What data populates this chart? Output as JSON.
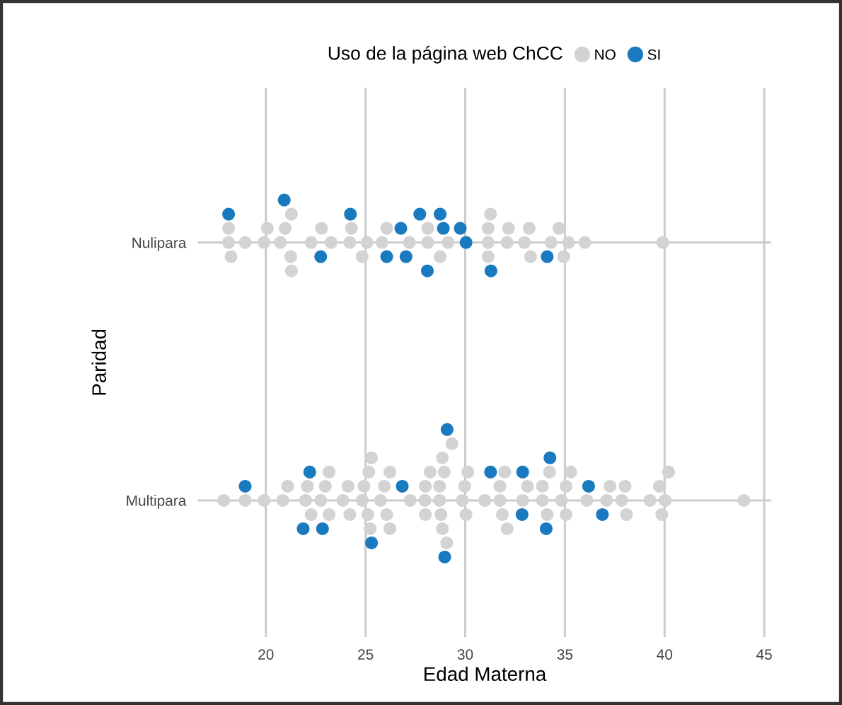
{
  "chart_data": {
    "type": "scatter",
    "orientation": "horizontal",
    "xlabel": "Edad Materna",
    "ylabel": "Paridad",
    "legend_title": "Uso de la página web ChCC",
    "legend": "top",
    "grid": true,
    "marker": "circle",
    "categories": [
      "Nulipara",
      "Multipara"
    ],
    "xlim": [
      16.6,
      45.35
    ],
    "xticks": [
      20,
      25,
      30,
      35,
      40,
      45
    ],
    "series": [
      {
        "name": "NO",
        "color": "#d3d3d3",
        "x": [
          "Nulipara",
          "Nulipara",
          "Nulipara",
          "Nulipara",
          "Nulipara",
          "Nulipara",
          "Nulipara",
          "Nulipara",
          "Nulipara",
          "Nulipara",
          "Nulipara",
          "Nulipara",
          "Nulipara",
          "Nulipara",
          "Nulipara",
          "Nulipara",
          "Nulipara",
          "Nulipara",
          "Nulipara",
          "Nulipara",
          "Nulipara",
          "Nulipara",
          "Nulipara",
          "Nulipara",
          "Nulipara",
          "Nulipara",
          "Nulipara",
          "Nulipara",
          "Nulipara",
          "Nulipara",
          "Nulipara",
          "Nulipara",
          "Nulipara",
          "Nulipara",
          "Nulipara",
          "Nulipara",
          "Nulipara",
          "Nulipara",
          "Nulipara",
          "Nulipara",
          "Multipara",
          "Multipara",
          "Multipara",
          "Multipara",
          "Multipara",
          "Multipara",
          "Multipara",
          "Multipara",
          "Multipara",
          "Multipara",
          "Multipara",
          "Multipara",
          "Multipara",
          "Multipara",
          "Multipara",
          "Multipara",
          "Multipara",
          "Multipara",
          "Multipara",
          "Multipara",
          "Multipara",
          "Multipara",
          "Multipara",
          "Multipara",
          "Multipara",
          "Multipara",
          "Multipara",
          "Multipara",
          "Multipara",
          "Multipara",
          "Multipara",
          "Multipara",
          "Multipara",
          "Multipara",
          "Multipara",
          "Multipara",
          "Multipara",
          "Multipara",
          "Multipara",
          "Multipara",
          "Multipara",
          "Multipara",
          "Multipara",
          "Multipara",
          "Multipara",
          "Multipara",
          "Multipara",
          "Multipara",
          "Multipara",
          "Multipara",
          "Multipara",
          "Multipara",
          "Multipara",
          "Multipara",
          "Multipara",
          "Multipara",
          "Multipara",
          "Multipara",
          "Multipara",
          "Multipara",
          "Multipara",
          "Multipara",
          "Multipara",
          "Multipara",
          "Multipara",
          "Multipara",
          "Multipara",
          "Multipara",
          "Multipara",
          "Multipara",
          "Multipara"
        ],
        "values": [
          18.13,
          18.13,
          18.25,
          18.96,
          19.91,
          20.07,
          20.73,
          20.97,
          21.25,
          21.28,
          21.28,
          22.27,
          22.79,
          23.27,
          24.21,
          24.29,
          24.83,
          25.07,
          25.82,
          26.06,
          27.2,
          28.12,
          28.12,
          28.74,
          29.14,
          31.15,
          31.15,
          31.15,
          31.27,
          32.1,
          32.17,
          32.97,
          33.21,
          33.28,
          34.3,
          34.7,
          34.94,
          35.18,
          36.0,
          39.91,
          17.89,
          18.96,
          19.91,
          20.85,
          21.09,
          21.99,
          22.08,
          22.27,
          22.75,
          22.98,
          23.17,
          23.17,
          23.86,
          24.12,
          24.21,
          24.83,
          24.92,
          25.11,
          25.16,
          25.23,
          25.3,
          25.75,
          25.94,
          26.06,
          26.22,
          26.22,
          27.24,
          27.98,
          28.0,
          28.0,
          28.24,
          28.71,
          28.71,
          28.78,
          28.85,
          28.85,
          28.95,
          29.07,
          29.33,
          29.85,
          29.97,
          30.04,
          30.13,
          30.98,
          31.74,
          31.74,
          31.86,
          31.98,
          32.1,
          32.88,
          33.12,
          33.87,
          33.87,
          34.11,
          34.23,
          34.82,
          35.06,
          35.06,
          35.29,
          36.1,
          37.09,
          37.26,
          37.85,
          38.02,
          38.09,
          39.27,
          39.74,
          39.86,
          40.03,
          40.2,
          43.98
        ]
      },
      {
        "name": "SI",
        "color": "#1a7abf",
        "x": [
          "Nulipara",
          "Nulipara",
          "Nulipara",
          "Nulipara",
          "Nulipara",
          "Nulipara",
          "Nulipara",
          "Nulipara",
          "Nulipara",
          "Nulipara",
          "Nulipara",
          "Nulipara",
          "Nulipara",
          "Nulipara",
          "Nulipara",
          "Multipara",
          "Multipara",
          "Multipara",
          "Multipara",
          "Multipara",
          "Multipara",
          "Multipara",
          "Multipara",
          "Multipara",
          "Multipara",
          "Multipara",
          "Multipara",
          "Multipara",
          "Multipara",
          "Multipara"
        ],
        "values": [
          18.13,
          20.92,
          22.75,
          24.24,
          26.06,
          26.77,
          27.03,
          27.72,
          28.1,
          28.74,
          28.9,
          29.75,
          30.04,
          31.29,
          34.11,
          18.96,
          22.2,
          21.87,
          22.84,
          25.3,
          26.84,
          28.97,
          29.09,
          31.27,
          32.85,
          32.88,
          34.06,
          34.25,
          36.19,
          36.88
        ]
      }
    ]
  }
}
